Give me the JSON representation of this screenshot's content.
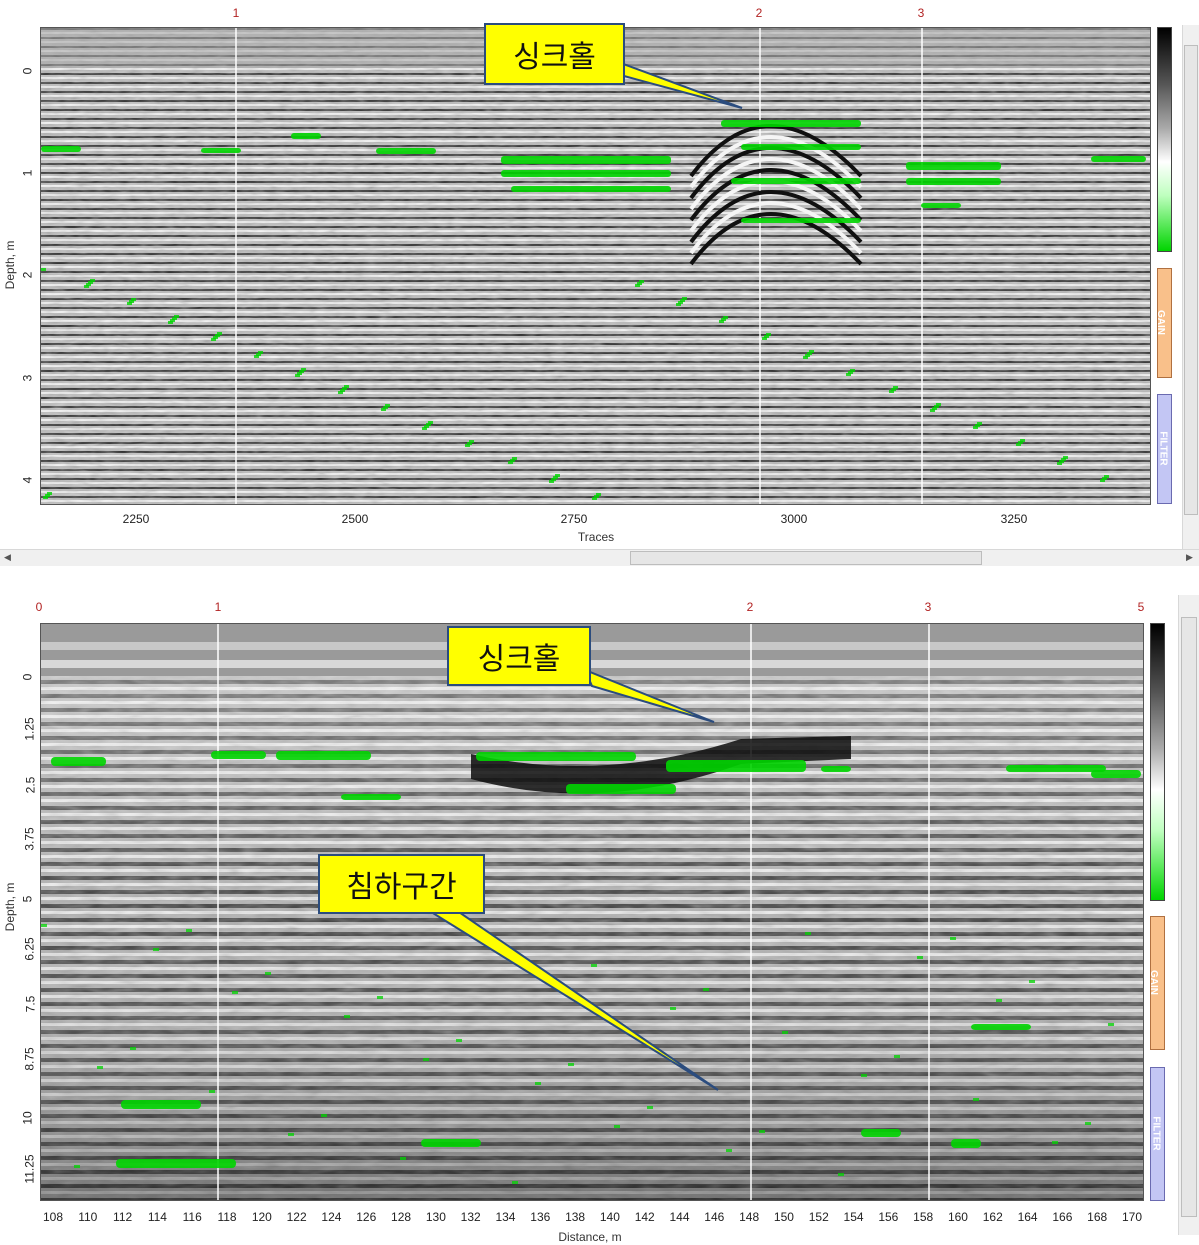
{
  "top": {
    "y_title": "Depth, m",
    "x_title": "Traces",
    "y_ticks": [
      "0",
      "1",
      "2",
      "3",
      "4"
    ],
    "x_ticks": [
      "2250",
      "2500",
      "2750",
      "3000",
      "3250"
    ],
    "markers": [
      "1",
      "2",
      "3"
    ],
    "callout": "싱크홀"
  },
  "bottom": {
    "y_title": "Depth, m",
    "x_title": "Distance, m",
    "y_ticks": [
      "0",
      "1.25",
      "2.5",
      "3.75",
      "5",
      "6.25",
      "7.5",
      "8.75",
      "10",
      "11.25"
    ],
    "x_ticks": [
      "108",
      "110",
      "112",
      "114",
      "116",
      "118",
      "120",
      "122",
      "124",
      "126",
      "128",
      "130",
      "132",
      "134",
      "136",
      "138",
      "140",
      "142",
      "144",
      "146",
      "148",
      "150",
      "152",
      "154",
      "156",
      "158",
      "160",
      "162",
      "164",
      "166",
      "168",
      "170"
    ],
    "markers": [
      "0",
      "1",
      "2",
      "3",
      "5"
    ],
    "callout_sinkhole": "싱크홀",
    "callout_subsidence": "침하구간"
  },
  "side_panels": {
    "gain_label": "GAIN",
    "filter_label": "FILTER"
  },
  "colors": {
    "highlight": "#00d400",
    "callout_fill": "#ffff00",
    "callout_border": "#2b4c7e",
    "marker_text": "#b22222"
  }
}
